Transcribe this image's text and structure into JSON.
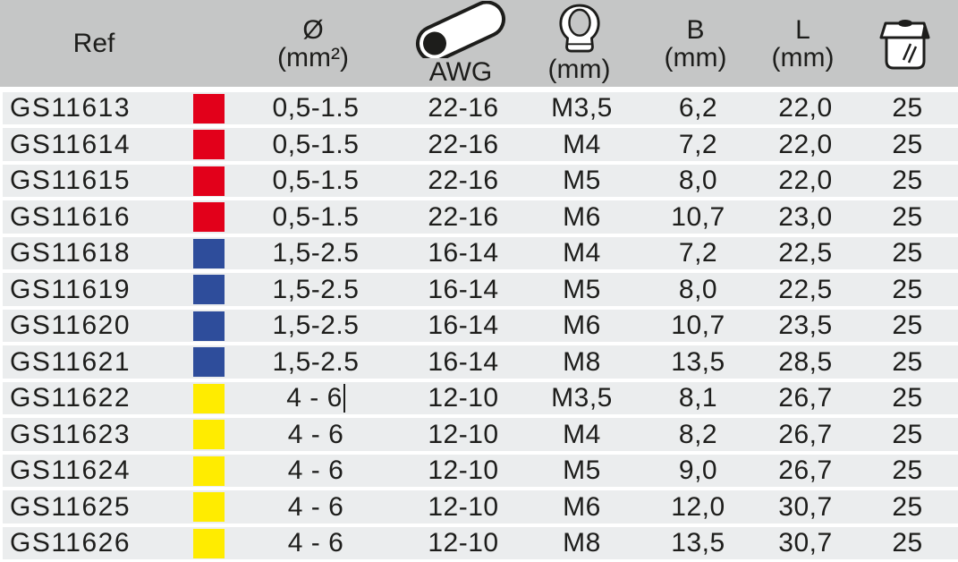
{
  "header": {
    "ref_label": "Ref",
    "diameter": {
      "line1": "Ø",
      "line2": "(mm²)"
    },
    "awg": {
      "icon": "wire-cross-section-icon",
      "label": "AWG"
    },
    "stud": {
      "icon": "ring-terminal-icon",
      "label": "(mm)"
    },
    "b": {
      "line1": "B",
      "line2": "(mm)"
    },
    "l": {
      "line1": "L",
      "line2": "(mm)"
    },
    "package": {
      "icon": "package-box-icon"
    }
  },
  "colors": {
    "red": "#e2001a",
    "blue": "#2e4d9b",
    "yellow": "#ffec00",
    "header_bg": "#c5c6c6",
    "row_bg": "#ebedee",
    "text": "#1d1d1b"
  },
  "rows": [
    {
      "ref": "GS11613",
      "color": "red",
      "diameter": "0,5-1.5",
      "awg": "22-16",
      "stud": "M3,5",
      "b": "6,2",
      "l": "22,0",
      "qty": "25"
    },
    {
      "ref": "GS11614",
      "color": "red",
      "diameter": "0,5-1.5",
      "awg": "22-16",
      "stud": "M4",
      "b": "7,2",
      "l": "22,0",
      "qty": "25"
    },
    {
      "ref": "GS11615",
      "color": "red",
      "diameter": "0,5-1.5",
      "awg": "22-16",
      "stud": "M5",
      "b": "8,0",
      "l": "22,0",
      "qty": "25"
    },
    {
      "ref": "GS11616",
      "color": "red",
      "diameter": "0,5-1.5",
      "awg": "22-16",
      "stud": "M6",
      "b": "10,7",
      "l": "23,0",
      "qty": "25"
    },
    {
      "ref": "GS11618",
      "color": "blue",
      "diameter": "1,5-2.5",
      "awg": "16-14",
      "stud": "M4",
      "b": "7,2",
      "l": "22,5",
      "qty": "25"
    },
    {
      "ref": "GS11619",
      "color": "blue",
      "diameter": "1,5-2.5",
      "awg": "16-14",
      "stud": "M5",
      "b": "8,0",
      "l": "22,5",
      "qty": "25"
    },
    {
      "ref": "GS11620",
      "color": "blue",
      "diameter": "1,5-2.5",
      "awg": "16-14",
      "stud": "M6",
      "b": "10,7",
      "l": "23,5",
      "qty": "25"
    },
    {
      "ref": "GS11621",
      "color": "blue",
      "diameter": "1,5-2.5",
      "awg": "16-14",
      "stud": "M8",
      "b": "13,5",
      "l": "28,5",
      "qty": "25"
    },
    {
      "ref": "GS11622",
      "color": "yellow",
      "diameter": "4 - 6",
      "awg": "12-10",
      "stud": "M3,5",
      "b": "8,1",
      "l": "26,7",
      "qty": "25"
    },
    {
      "ref": "GS11623",
      "color": "yellow",
      "diameter": "4 - 6",
      "awg": "12-10",
      "stud": "M4",
      "b": "8,2",
      "l": "26,7",
      "qty": "25"
    },
    {
      "ref": "GS11624",
      "color": "yellow",
      "diameter": "4 - 6",
      "awg": "12-10",
      "stud": "M5",
      "b": "9,0",
      "l": "26,7",
      "qty": "25"
    },
    {
      "ref": "GS11625",
      "color": "yellow",
      "diameter": "4 - 6",
      "awg": "12-10",
      "stud": "M6",
      "b": "12,0",
      "l": "30,7",
      "qty": "25"
    },
    {
      "ref": "GS11626",
      "color": "yellow",
      "diameter": "4 - 6",
      "awg": "12-10",
      "stud": "M8",
      "b": "13,5",
      "l": "30,7",
      "qty": "25"
    }
  ],
  "ui": {
    "text_cursor": {
      "visible": true,
      "after_row_ref": "GS11622",
      "column": "diameter"
    }
  }
}
